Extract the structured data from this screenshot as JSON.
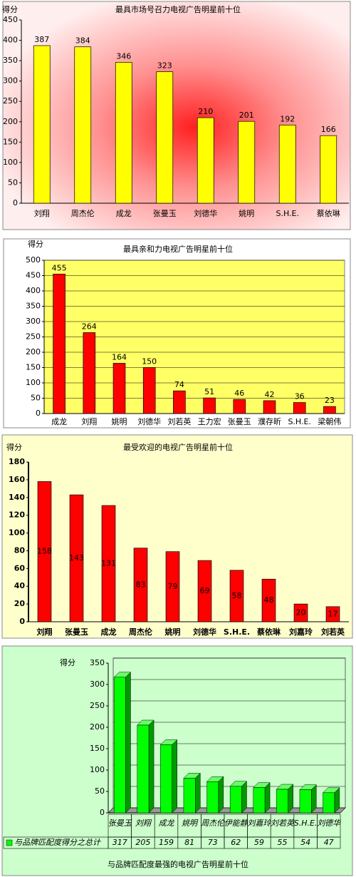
{
  "chart_data": [
    {
      "type": "bar",
      "title": "最具市场号召力电视广告明星前十位",
      "y_label": "得分",
      "categories": [
        "刘翔",
        "周杰伦",
        "成龙",
        "张曼玉",
        "刘德华",
        "姚明",
        "S.H.E.",
        "蔡依琳"
      ],
      "values": [
        387,
        384,
        346,
        323,
        210,
        201,
        192,
        166
      ],
      "color": "#ffff00",
      "ylim": [
        0,
        450
      ],
      "yticks": [
        0,
        50,
        100,
        150,
        200,
        250,
        300,
        350,
        400,
        450
      ],
      "grid": false
    },
    {
      "type": "bar",
      "title": "最具亲和力电视广告明星前十位",
      "y_label": "得分",
      "categories": [
        "成龙",
        "刘翔",
        "姚明",
        "刘德华",
        "刘若英",
        "王力宏",
        "张曼玉",
        "濮存昕",
        "S.H.E.",
        "梁朝伟"
      ],
      "values": [
        455,
        264,
        164,
        150,
        74,
        51,
        46,
        42,
        36,
        23
      ],
      "color": "#ff0000",
      "ylim": [
        0,
        500
      ],
      "yticks": [
        0,
        50,
        100,
        150,
        200,
        250,
        300,
        350,
        400,
        450,
        500
      ],
      "grid": true
    },
    {
      "type": "bar",
      "title": "最受欢迎的电视广告明星前十位",
      "y_label": "得分",
      "categories": [
        "刘翔",
        "张曼玉",
        "成龙",
        "周杰伦",
        "姚明",
        "刘德华",
        "S.H.E.",
        "蔡依琳",
        "刘嘉玲",
        "刘若英"
      ],
      "values": [
        158,
        143,
        131,
        83,
        79,
        69,
        58,
        48,
        20,
        17
      ],
      "color": "#ff0000",
      "ylim": [
        0,
        180
      ],
      "yticks": [
        0,
        20,
        40,
        60,
        80,
        100,
        120,
        140,
        160,
        180
      ],
      "grid": false
    },
    {
      "type": "bar3d",
      "title": "与品牌匹配度最强的电视广告明星前十位",
      "y_label": "得分",
      "categories": [
        "张曼玉",
        "刘翔",
        "成龙",
        "姚明",
        "周杰伦",
        "伊能静",
        "刘嘉玲",
        "刘若英",
        "S.H.E.",
        "刘德华"
      ],
      "series": [
        {
          "name": "与品牌匹配度得分之总计",
          "color": "#00ff00",
          "values": [
            317,
            205,
            159,
            81,
            73,
            62,
            59,
            55,
            54,
            47
          ]
        }
      ],
      "ylim": [
        0,
        350
      ],
      "yticks": [
        0,
        50,
        100,
        150,
        200,
        250,
        300,
        350
      ],
      "grid": true
    }
  ]
}
